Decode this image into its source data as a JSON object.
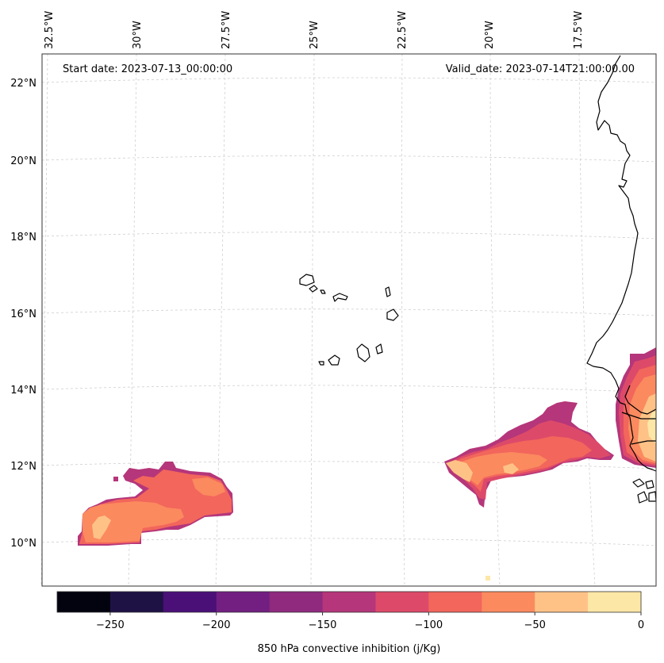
{
  "map": {
    "start_date": "Start date: 2023-07-13_00:00:00",
    "valid_date": "Valid_date: 2023-07-14T21:00:00.00",
    "lon_labels": [
      "32.5°W",
      "30°W",
      "27.5°W",
      "25°W",
      "22.5°W",
      "20°W",
      "17.5°W"
    ],
    "lat_labels": [
      "22°N",
      "20°N",
      "18°N",
      "16°N",
      "14°N",
      "12°N",
      "10°N"
    ],
    "gridlines": "dashed, light gray"
  },
  "colorbar": {
    "label": "850 hPa convective inhibition (j/Kg)",
    "levels": [
      -275,
      -250,
      -225,
      -200,
      -175,
      -150,
      -125,
      -100,
      -75,
      -50,
      -25,
      0
    ],
    "tick_labels": [
      "−250",
      "−200",
      "−150",
      "−100",
      "−50",
      "0"
    ],
    "colors": [
      "#03020f",
      "#1e1245",
      "#4a1078",
      "#721f81",
      "#8f2a7f",
      "#b5367a",
      "#dd4a69",
      "#f2665c",
      "#fb8a5f",
      "#fec287",
      "#fde7a6"
    ]
  },
  "colors": {
    "land_outline": "#000000",
    "grid": "#c8c8c8"
  }
}
